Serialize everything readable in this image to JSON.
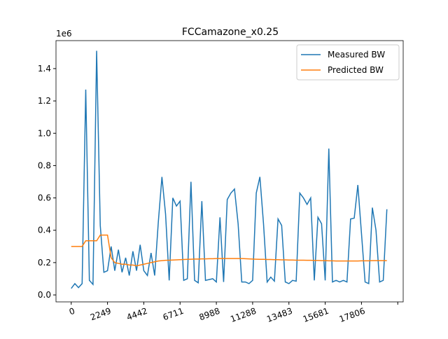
{
  "chart_data": {
    "type": "line",
    "title": "FCCamazone_x0.25",
    "y_offset_label": "1e6",
    "x": [
      0,
      1,
      2,
      3,
      4,
      5,
      6,
      7,
      8,
      9,
      10,
      11,
      12,
      13,
      14,
      15,
      16,
      17,
      18,
      19,
      20,
      21,
      22,
      23,
      24,
      25,
      26,
      27,
      28,
      29,
      30,
      31,
      32,
      33,
      34,
      35,
      36,
      37,
      38,
      39,
      40,
      41,
      42,
      43,
      44,
      45,
      46,
      47,
      48,
      49,
      50,
      51,
      52,
      53,
      54,
      55,
      56,
      57,
      58,
      59,
      60,
      61,
      62,
      63,
      64,
      65,
      66,
      67,
      68,
      69,
      70,
      71,
      72,
      73,
      74,
      75,
      76,
      77,
      78,
      79,
      80,
      81,
      82,
      83,
      84,
      85,
      86,
      87
    ],
    "series": [
      {
        "name": "Measured BW",
        "color": "#1f77b4",
        "values": [
          40000,
          70000,
          45000,
          70000,
          1270000,
          90000,
          65000,
          1510000,
          430000,
          140000,
          150000,
          300000,
          150000,
          280000,
          140000,
          230000,
          120000,
          270000,
          150000,
          310000,
          150000,
          120000,
          260000,
          120000,
          450000,
          730000,
          500000,
          90000,
          600000,
          550000,
          580000,
          90000,
          100000,
          700000,
          90000,
          75000,
          580000,
          90000,
          95000,
          100000,
          80000,
          480000,
          80000,
          590000,
          630000,
          655000,
          440000,
          80000,
          80000,
          70000,
          90000,
          630000,
          730000,
          440000,
          80000,
          110000,
          85000,
          470000,
          430000,
          80000,
          70000,
          90000,
          85000,
          630000,
          600000,
          560000,
          600000,
          90000,
          480000,
          440000,
          90000,
          905000,
          80000,
          90000,
          80000,
          90000,
          80000,
          470000,
          475000,
          680000,
          380000,
          80000,
          70000,
          540000,
          400000,
          80000,
          90000,
          530000
        ]
      },
      {
        "name": "Predicted BW",
        "color": "#ff7f0e",
        "values": [
          300000,
          300000,
          300000,
          300000,
          335000,
          335000,
          335000,
          335000,
          370000,
          370000,
          370000,
          230000,
          200000,
          195000,
          190000,
          190000,
          185000,
          185000,
          180000,
          185000,
          190000,
          195000,
          200000,
          205000,
          210000,
          212000,
          214000,
          215000,
          216000,
          217000,
          218000,
          219000,
          220000,
          221000,
          222000,
          222000,
          223000,
          223000,
          224000,
          224000,
          225000,
          225000,
          225000,
          225000,
          225000,
          225000,
          225000,
          225000,
          224000,
          223000,
          222000,
          221000,
          220000,
          220000,
          219000,
          219000,
          218000,
          218000,
          217000,
          217000,
          216000,
          216000,
          215000,
          215000,
          215000,
          214000,
          214000,
          213000,
          213000,
          212000,
          212000,
          211000,
          211000,
          210000,
          210000,
          210000,
          210000,
          210000,
          210000,
          210000,
          211000,
          211000,
          211000,
          212000,
          212000,
          212000,
          212000,
          212000
        ]
      }
    ],
    "xlim": [
      -4.2,
      91.5
    ],
    "ylim": [
      -43000,
      1573000
    ],
    "xticks": [
      {
        "value": 0,
        "label": "0"
      },
      {
        "value": 10,
        "label": "2249"
      },
      {
        "value": 20,
        "label": "4442"
      },
      {
        "value": 30,
        "label": "6711"
      },
      {
        "value": 40,
        "label": "8988"
      },
      {
        "value": 50,
        "label": "11288"
      },
      {
        "value": 60,
        "label": "13483"
      },
      {
        "value": 70,
        "label": "15681"
      },
      {
        "value": 80,
        "label": "17806"
      },
      {
        "value": 90,
        "label": null
      }
    ],
    "yticks": [
      {
        "value": 0,
        "label": "0.0"
      },
      {
        "value": 200000,
        "label": "0.2"
      },
      {
        "value": 400000,
        "label": "0.4"
      },
      {
        "value": 600000,
        "label": "0.6"
      },
      {
        "value": 800000,
        "label": "0.8"
      },
      {
        "value": 1000000,
        "label": "1.0"
      },
      {
        "value": 1200000,
        "label": "1.2"
      },
      {
        "value": 1400000,
        "label": "1.4"
      }
    ],
    "legend": "upper right"
  }
}
